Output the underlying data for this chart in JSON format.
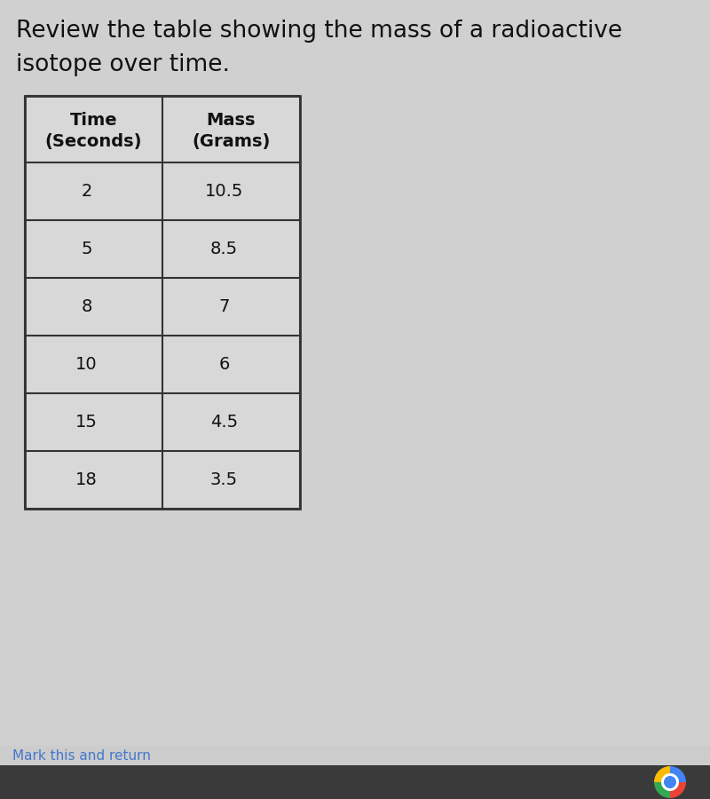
{
  "title_line1": "Review the table showing the mass of a radioactive",
  "title_line2": "isotope over time.",
  "col1_header_line1": "Time",
  "col1_header_line2": "(Seconds)",
  "col2_header_line1": "Mass",
  "col2_header_line2": "(Grams)",
  "rows": [
    [
      "2",
      "10.5"
    ],
    [
      "5",
      "8.5"
    ],
    [
      "8",
      "7"
    ],
    [
      "10",
      "6"
    ],
    [
      "15",
      "4.5"
    ],
    [
      "18",
      "3.5"
    ]
  ],
  "bg_color": "#d0d0d0",
  "cell_bg": "#d8d8d8",
  "border_color": "#333333",
  "text_color": "#111111",
  "title_color": "#111111",
  "footer_text": "Mark this and return",
  "footer_color": "#4477cc",
  "bottom_bar_color": "#3a3a3a",
  "bottom_light_color": "#cccccc"
}
